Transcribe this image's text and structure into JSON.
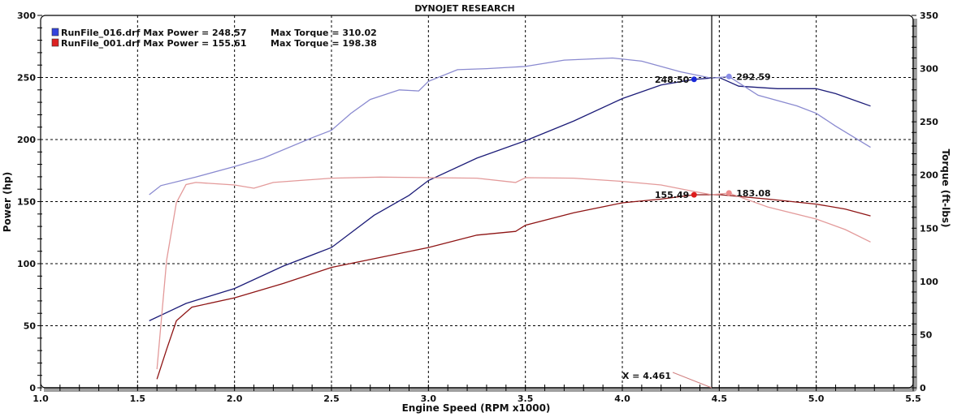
{
  "chart_data": {
    "type": "line",
    "title": "DYNOJET RESEARCH",
    "xlabel": "Engine Speed (RPM x1000)",
    "ylabel": "Power (hp)",
    "y2label": "Torque (ft-lbs)",
    "xlim": [
      1.0,
      5.5
    ],
    "ylim": [
      0,
      300
    ],
    "y2lim": [
      0,
      350
    ],
    "xticks": [
      "1.0",
      "1.5",
      "2.0",
      "2.5",
      "3.0",
      "3.5",
      "4.0",
      "4.5",
      "5.0",
      "5.5"
    ],
    "yticks": [
      "0",
      "50",
      "100",
      "150",
      "200",
      "250",
      "300"
    ],
    "y2ticks": [
      "0",
      "50",
      "100",
      "150",
      "200",
      "250",
      "300",
      "350"
    ],
    "grid": true,
    "legend": [
      {
        "file": "RunFile_016.drf",
        "power_text": "Max Power = 248.57",
        "torque_text": "Max Torque = 310.02",
        "color": "#3344dd"
      },
      {
        "file": "RunFile_001.drf",
        "power_text": "Max Power = 155.61",
        "torque_text": "Max Torque = 198.38",
        "color": "#dd2222"
      }
    ],
    "legend_position": "top-left",
    "cursor": {
      "x": 4.461,
      "label": "X = 4.461"
    },
    "series": [
      {
        "name": "RunFile_016 Power",
        "axis": "left",
        "color": "#1c1c78",
        "x": [
          1.56,
          1.75,
          2.0,
          2.25,
          2.5,
          2.72,
          2.9,
          3.0,
          3.25,
          3.5,
          3.75,
          4.0,
          4.2,
          4.37,
          4.5,
          4.6,
          4.8,
          5.0,
          5.1,
          5.28
        ],
        "y": [
          54,
          68,
          80,
          98,
          113,
          139,
          155,
          167,
          185,
          199,
          215,
          233,
          244,
          248.5,
          250,
          243,
          241,
          241,
          237,
          227
        ]
      },
      {
        "name": "RunFile_016 Torque",
        "axis": "right",
        "color": "#8a8ad0",
        "x": [
          1.56,
          1.62,
          1.8,
          2.0,
          2.15,
          2.4,
          2.5,
          2.6,
          2.7,
          2.85,
          2.95,
          3.0,
          3.15,
          3.3,
          3.5,
          3.7,
          3.95,
          4.1,
          4.3,
          4.46,
          4.55,
          4.7,
          4.9,
          5.0,
          5.1,
          5.28
        ],
        "y": [
          181.5,
          190,
          198,
          208,
          216,
          235,
          242,
          258,
          271,
          280,
          279,
          288,
          299,
          300,
          302,
          308,
          310,
          307,
          297,
          291,
          292.6,
          275,
          265,
          258,
          246,
          226
        ]
      },
      {
        "name": "RunFile_001 Power",
        "axis": "left",
        "color": "#8e1414",
        "x": [
          1.6,
          1.65,
          1.7,
          1.78,
          2.0,
          2.25,
          2.5,
          2.75,
          3.0,
          3.25,
          3.45,
          3.5,
          3.75,
          4.0,
          4.2,
          4.37,
          4.5,
          4.75,
          5.0,
          5.15,
          5.28
        ],
        "y": [
          7,
          31,
          54,
          65,
          72.5,
          84,
          97,
          105,
          113,
          123,
          126,
          131,
          141,
          149,
          152,
          155.5,
          155.6,
          152,
          148,
          144,
          138.5
        ]
      },
      {
        "name": "RunFile_001 Torque",
        "axis": "right",
        "color": "#e39a9a",
        "x": [
          1.6,
          1.65,
          1.7,
          1.75,
          1.8,
          2.0,
          2.1,
          2.2,
          2.5,
          2.75,
          3.0,
          3.25,
          3.45,
          3.5,
          3.75,
          4.0,
          4.2,
          4.37,
          4.46,
          4.55,
          4.75,
          5.0,
          5.15,
          5.28
        ],
        "y": [
          17.5,
          120,
          174,
          191,
          193,
          190.6,
          187.6,
          193,
          197,
          198,
          197.5,
          197,
          193,
          197.5,
          197,
          194,
          190.6,
          184.5,
          181.5,
          183,
          170,
          158.6,
          148.7,
          137
        ]
      }
    ],
    "markers": [
      {
        "x": 4.37,
        "y": 248.5,
        "axis": "left",
        "label": "248.50",
        "color": "#1a2ad8",
        "side": "left"
      },
      {
        "x": 4.55,
        "y": 292.59,
        "axis": "right",
        "label": "292.59",
        "color": "#8a8ee8",
        "side": "right"
      },
      {
        "x": 4.37,
        "y": 155.49,
        "axis": "left",
        "label": "155.49",
        "color": "#dd1a1a",
        "side": "left"
      },
      {
        "x": 4.55,
        "y": 183.08,
        "axis": "right",
        "label": "183.08",
        "color": "#ec8a8a",
        "side": "right"
      }
    ]
  }
}
